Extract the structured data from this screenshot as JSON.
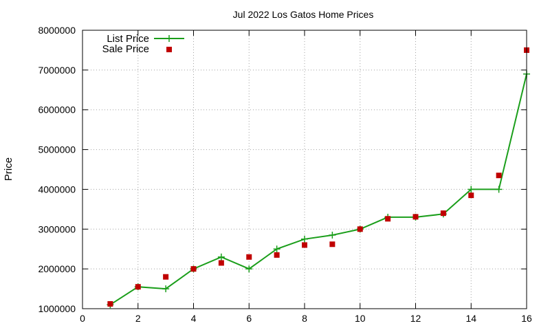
{
  "chart_data": {
    "type": "line",
    "title": "Jul 2022 Los Gatos Home Prices",
    "xlabel": "",
    "ylabel": "Price",
    "xlim": [
      0,
      16
    ],
    "ylim": [
      1000000,
      8000000
    ],
    "xticks": [
      0,
      2,
      4,
      6,
      8,
      10,
      12,
      14,
      16
    ],
    "yticks": [
      1000000,
      2000000,
      3000000,
      4000000,
      5000000,
      6000000,
      7000000,
      8000000
    ],
    "grid": true,
    "legend_position": "top-left",
    "series": [
      {
        "name": "List Price",
        "style": "line-with-plus-markers",
        "color": "#1a9e1a",
        "x": [
          1,
          2,
          3,
          4,
          5,
          6,
          7,
          8,
          9,
          10,
          11,
          12,
          13,
          14,
          15,
          16
        ],
        "y": [
          1100000,
          1550000,
          1500000,
          2000000,
          2300000,
          2000000,
          2500000,
          2750000,
          2850000,
          3000000,
          3300000,
          3300000,
          3380000,
          4000000,
          4000000,
          6900000
        ]
      },
      {
        "name": "Sale Price",
        "style": "square-markers",
        "color": "#c00000",
        "x": [
          1,
          2,
          3,
          4,
          5,
          6,
          7,
          8,
          9,
          10,
          11,
          12,
          13,
          14,
          15,
          16
        ],
        "y": [
          1120000,
          1550000,
          1800000,
          2000000,
          2150000,
          2300000,
          2350000,
          2600000,
          2620000,
          3000000,
          3260000,
          3310000,
          3400000,
          3850000,
          4350000,
          7500000
        ]
      }
    ]
  }
}
